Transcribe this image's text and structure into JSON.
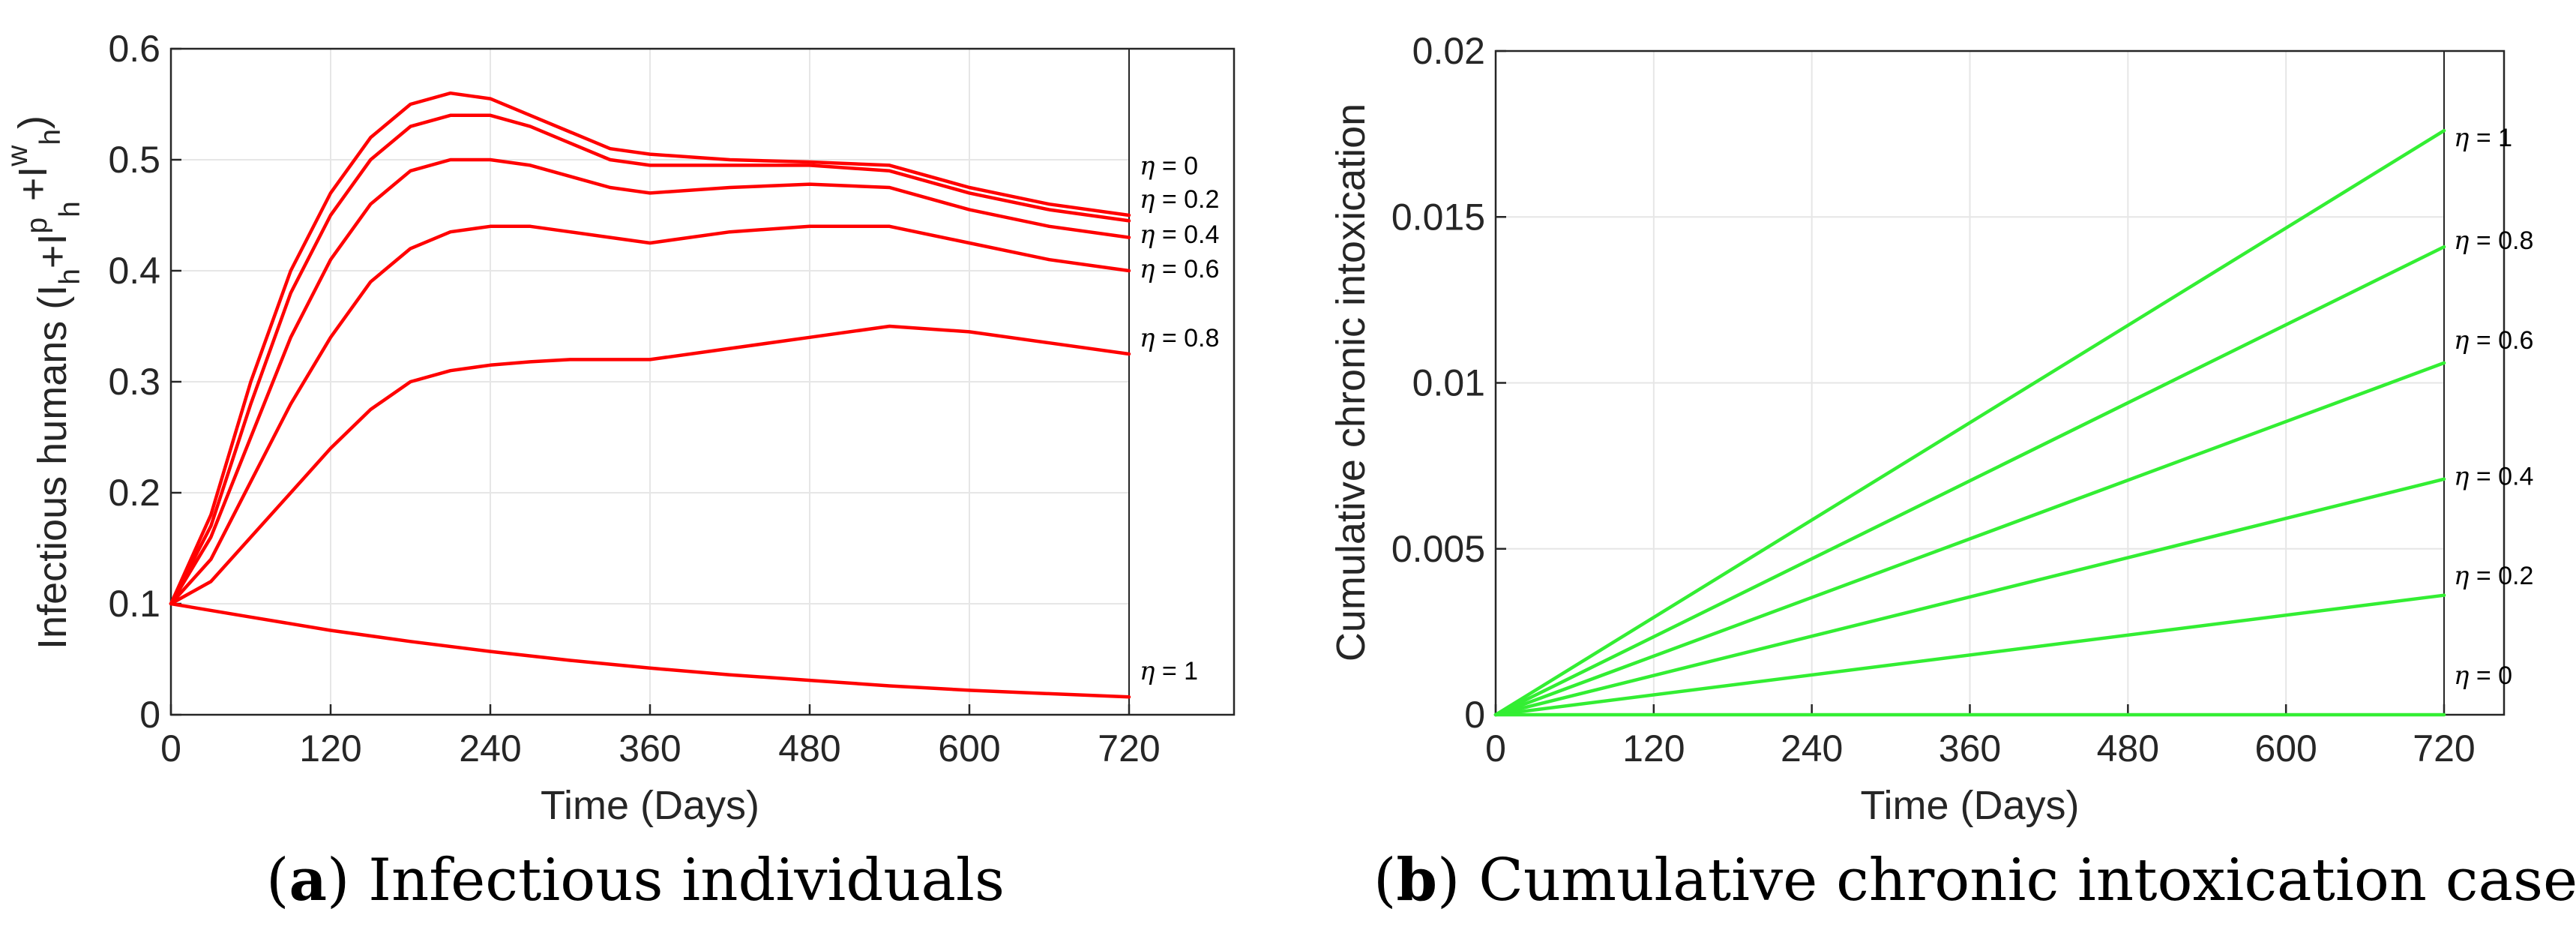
{
  "chart_data": [
    {
      "panel": "a",
      "type": "line",
      "caption_letter": "a",
      "caption_text": "Infectious individuals",
      "xlabel": "Time (Days)",
      "ylabel": "Infectious humans (I",
      "ylabel_parts": {
        "main": "Infectious humans (I",
        "sub1": "h",
        "plus1": "+I",
        "sup1": "p",
        "sub2": "h",
        "plus2": "+I",
        "sup2": "w",
        "sub3": "h",
        "close": ")"
      },
      "xlim": [
        0,
        720
      ],
      "ylim": [
        0,
        0.6
      ],
      "xticks": [
        0,
        120,
        240,
        360,
        480,
        600,
        720
      ],
      "yticks": [
        0,
        0.1,
        0.2,
        0.3,
        0.4,
        0.5,
        0.6
      ],
      "ytick_labels": [
        "0",
        "0.1",
        "0.2",
        "0.3",
        "0.4",
        "0.5",
        "0.6"
      ],
      "grid": true,
      "color": "#ff0000",
      "series": [
        {
          "name": "η = 0",
          "x": [
            0,
            30,
            60,
            90,
            120,
            150,
            180,
            210,
            240,
            270,
            300,
            330,
            360,
            420,
            480,
            540,
            600,
            660,
            720
          ],
          "values": [
            0.1,
            0.18,
            0.3,
            0.4,
            0.47,
            0.52,
            0.55,
            0.56,
            0.555,
            0.54,
            0.525,
            0.51,
            0.505,
            0.5,
            0.498,
            0.495,
            0.475,
            0.46,
            0.45
          ],
          "label_value": 0.495
        },
        {
          "name": "η = 0.2",
          "x": [
            0,
            30,
            60,
            90,
            120,
            150,
            180,
            210,
            240,
            270,
            300,
            330,
            360,
            420,
            480,
            540,
            600,
            660,
            720
          ],
          "values": [
            0.1,
            0.17,
            0.28,
            0.38,
            0.45,
            0.5,
            0.53,
            0.54,
            0.54,
            0.53,
            0.515,
            0.5,
            0.495,
            0.495,
            0.495,
            0.49,
            0.47,
            0.455,
            0.445
          ],
          "label_value": 0.465
        },
        {
          "name": "η = 0.4",
          "x": [
            0,
            30,
            60,
            90,
            120,
            150,
            180,
            210,
            240,
            270,
            300,
            330,
            360,
            420,
            480,
            540,
            600,
            660,
            720
          ],
          "values": [
            0.1,
            0.16,
            0.25,
            0.34,
            0.41,
            0.46,
            0.49,
            0.5,
            0.5,
            0.495,
            0.485,
            0.475,
            0.47,
            0.475,
            0.478,
            0.475,
            0.455,
            0.44,
            0.43
          ],
          "label_value": 0.433
        },
        {
          "name": "η = 0.6",
          "x": [
            0,
            30,
            60,
            90,
            120,
            150,
            180,
            210,
            240,
            270,
            300,
            330,
            360,
            420,
            480,
            540,
            600,
            660,
            720
          ],
          "values": [
            0.1,
            0.14,
            0.21,
            0.28,
            0.34,
            0.39,
            0.42,
            0.435,
            0.44,
            0.44,
            0.435,
            0.43,
            0.425,
            0.435,
            0.44,
            0.44,
            0.425,
            0.41,
            0.4
          ],
          "label_value": 0.402
        },
        {
          "name": "η = 0.8",
          "x": [
            0,
            30,
            60,
            90,
            120,
            150,
            180,
            210,
            240,
            270,
            300,
            330,
            360,
            420,
            480,
            540,
            600,
            660,
            720
          ],
          "values": [
            0.1,
            0.12,
            0.16,
            0.2,
            0.24,
            0.275,
            0.3,
            0.31,
            0.315,
            0.318,
            0.32,
            0.32,
            0.32,
            0.33,
            0.34,
            0.35,
            0.345,
            0.335,
            0.325
          ],
          "label_value": 0.34
        },
        {
          "name": "η = 1",
          "x": [
            0,
            60,
            120,
            180,
            240,
            300,
            360,
            420,
            480,
            540,
            600,
            660,
            720
          ],
          "values": [
            0.1,
            0.088,
            0.076,
            0.066,
            0.057,
            0.049,
            0.042,
            0.036,
            0.031,
            0.026,
            0.022,
            0.019,
            0.016
          ],
          "label_value": 0.04
        }
      ]
    },
    {
      "panel": "b",
      "type": "line",
      "caption_letter": "b",
      "caption_text": "Cumulative chronic intoxication cases",
      "xlabel": "Time (Days)",
      "ylabel": "Cumulative chronic intoxication",
      "xlim": [
        0,
        720
      ],
      "ylim": [
        0,
        0.02
      ],
      "xticks": [
        0,
        120,
        240,
        360,
        480,
        600,
        720
      ],
      "yticks": [
        0,
        0.005,
        0.01,
        0.015,
        0.02
      ],
      "ytick_labels": [
        "0",
        "0.005",
        "0.01",
        "0.015",
        "0.02"
      ],
      "grid": true,
      "color": "#33ee33",
      "series": [
        {
          "name": "η = 1",
          "x": [
            0,
            720
          ],
          "values": [
            0,
            0.0176
          ],
          "label_value": 0.0174
        },
        {
          "name": "η = 0.8",
          "x": [
            0,
            720
          ],
          "values": [
            0,
            0.0141
          ],
          "label_value": 0.0143
        },
        {
          "name": "η = 0.6",
          "x": [
            0,
            720
          ],
          "values": [
            0,
            0.0106
          ],
          "label_value": 0.0113
        },
        {
          "name": "η = 0.4",
          "x": [
            0,
            720
          ],
          "values": [
            0,
            0.0071
          ],
          "label_value": 0.0072
        },
        {
          "name": "η = 0.2",
          "x": [
            0,
            720
          ],
          "values": [
            0,
            0.0036
          ],
          "label_value": 0.0042
        },
        {
          "name": "η = 0",
          "x": [
            0,
            720
          ],
          "values": [
            0,
            0
          ],
          "label_value": 0.0012
        }
      ]
    }
  ]
}
